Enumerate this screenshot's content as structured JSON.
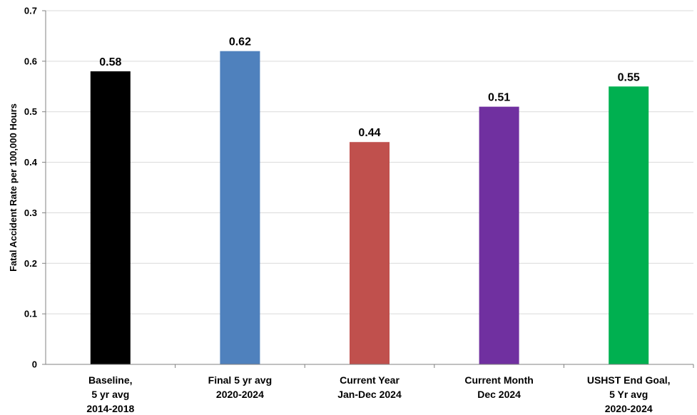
{
  "chart_data": {
    "type": "bar",
    "ylabel": "Fatal Accident Rate per 100,000 Hours",
    "ylim": [
      0,
      0.7
    ],
    "yticks": [
      "0",
      "0.1",
      "0.2",
      "0.3",
      "0.4",
      "0.5",
      "0.6",
      "0.7"
    ],
    "grid": true,
    "legend": "none",
    "categories": [
      [
        "Baseline,",
        "5 yr avg",
        "2014-2018"
      ],
      [
        "Final 5 yr avg",
        "2020-2024"
      ],
      [
        "Current Year",
        "Jan-Dec 2024"
      ],
      [
        "Current Month",
        "Dec 2024"
      ],
      [
        "USHST End Goal,",
        "5 Yr avg",
        "2020-2024"
      ]
    ],
    "values": [
      0.58,
      0.62,
      0.44,
      0.51,
      0.55
    ],
    "value_labels": [
      "0.58",
      "0.62",
      "0.44",
      "0.51",
      "0.55"
    ],
    "colors": [
      "#000000",
      "#4f81bd",
      "#c0504d",
      "#7030a0",
      "#00b050"
    ]
  }
}
